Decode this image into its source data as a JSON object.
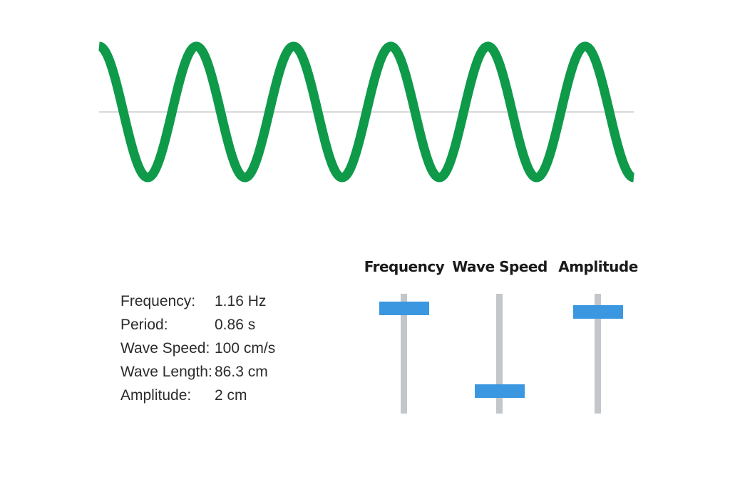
{
  "wave": {
    "color": "#0f9a4a",
    "axis_color": "#d9d9d9",
    "cycles_visible": 5.5
  },
  "readout": {
    "frequency_label": "Frequency:",
    "frequency_value": "1.16 Hz",
    "period_label": "Period:",
    "period_value": "0.86 s",
    "wave_speed_label": "Wave Speed:",
    "wave_speed_value": "100 cm/s",
    "wave_length_label": "Wave Length:",
    "wave_length_value": "86.3 cm",
    "amplitude_label": "Amplitude:",
    "amplitude_value": "2 cm"
  },
  "sliders": {
    "frequency": {
      "label": "Frequency",
      "level": 0.88
    },
    "wave_speed": {
      "label": "Wave Speed",
      "level": 0.19
    },
    "amplitude": {
      "label": "Amplitude",
      "level": 0.85
    }
  },
  "colors": {
    "thumb": "#3b97df",
    "track": "#c3c6ca"
  }
}
